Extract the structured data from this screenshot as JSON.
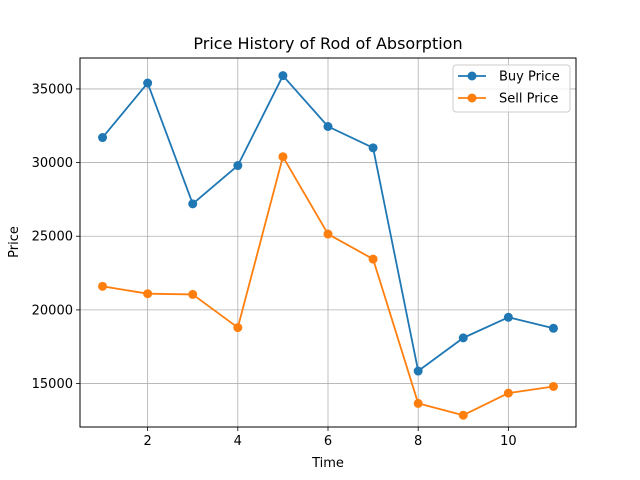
{
  "chart_data": {
    "type": "line",
    "title": "Price History of Rod of Absorption",
    "xlabel": "Time",
    "ylabel": "Price",
    "x": [
      1,
      2,
      3,
      4,
      5,
      6,
      7,
      8,
      9,
      10,
      11
    ],
    "xlim": [
      0.5,
      11.5
    ],
    "ylim": [
      12050,
      37100
    ],
    "xticks": [
      2,
      4,
      6,
      8,
      10
    ],
    "yticks": [
      15000,
      20000,
      25000,
      30000,
      35000
    ],
    "grid": true,
    "legend_position": "top-right",
    "series": [
      {
        "name": "Buy Price",
        "color": "#1f77b4",
        "marker": "circle",
        "values": [
          31700,
          35400,
          27200,
          29800,
          35900,
          32450,
          31000,
          15850,
          18100,
          19500,
          18750
        ]
      },
      {
        "name": "Sell Price",
        "color": "#ff7f0e",
        "marker": "circle",
        "values": [
          21600,
          21100,
          21050,
          18800,
          30400,
          25150,
          23450,
          13650,
          12850,
          14350,
          14800
        ]
      }
    ]
  }
}
